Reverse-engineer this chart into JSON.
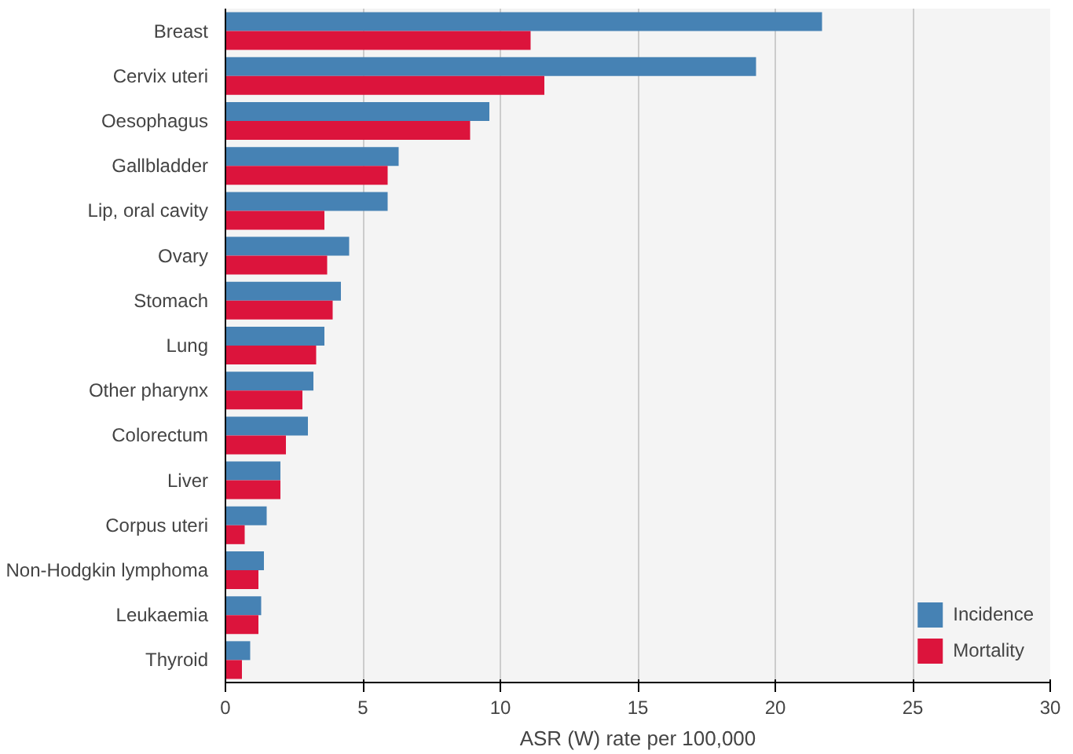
{
  "chart_data": {
    "type": "bar",
    "orientation": "horizontal",
    "xlabel": "ASR (W) rate per 100,000",
    "categories": [
      "Breast",
      "Cervix uteri",
      "Oesophagus",
      "Gallbladder",
      "Lip, oral cavity",
      "Ovary",
      "Stomach",
      "Lung",
      "Other pharynx",
      "Colorectum",
      "Liver",
      "Corpus uteri",
      "Non-Hodgkin lymphoma",
      "Leukaemia",
      "Thyroid"
    ],
    "series": [
      {
        "name": "Incidence",
        "color": "#4682b4",
        "values": [
          21.7,
          19.3,
          9.6,
          6.3,
          5.9,
          4.5,
          4.2,
          3.6,
          3.2,
          3.0,
          2.0,
          1.5,
          1.4,
          1.3,
          0.9
        ]
      },
      {
        "name": "Mortality",
        "color": "#dc143c",
        "values": [
          11.1,
          11.6,
          8.9,
          5.9,
          3.6,
          3.7,
          3.9,
          3.3,
          2.8,
          2.2,
          2.0,
          0.7,
          1.2,
          1.2,
          0.6
        ]
      }
    ],
    "xlim": [
      0,
      30
    ],
    "xticks": [
      0,
      5,
      10,
      15,
      20,
      25,
      30
    ],
    "grid": "x",
    "legend": "bottom right"
  }
}
